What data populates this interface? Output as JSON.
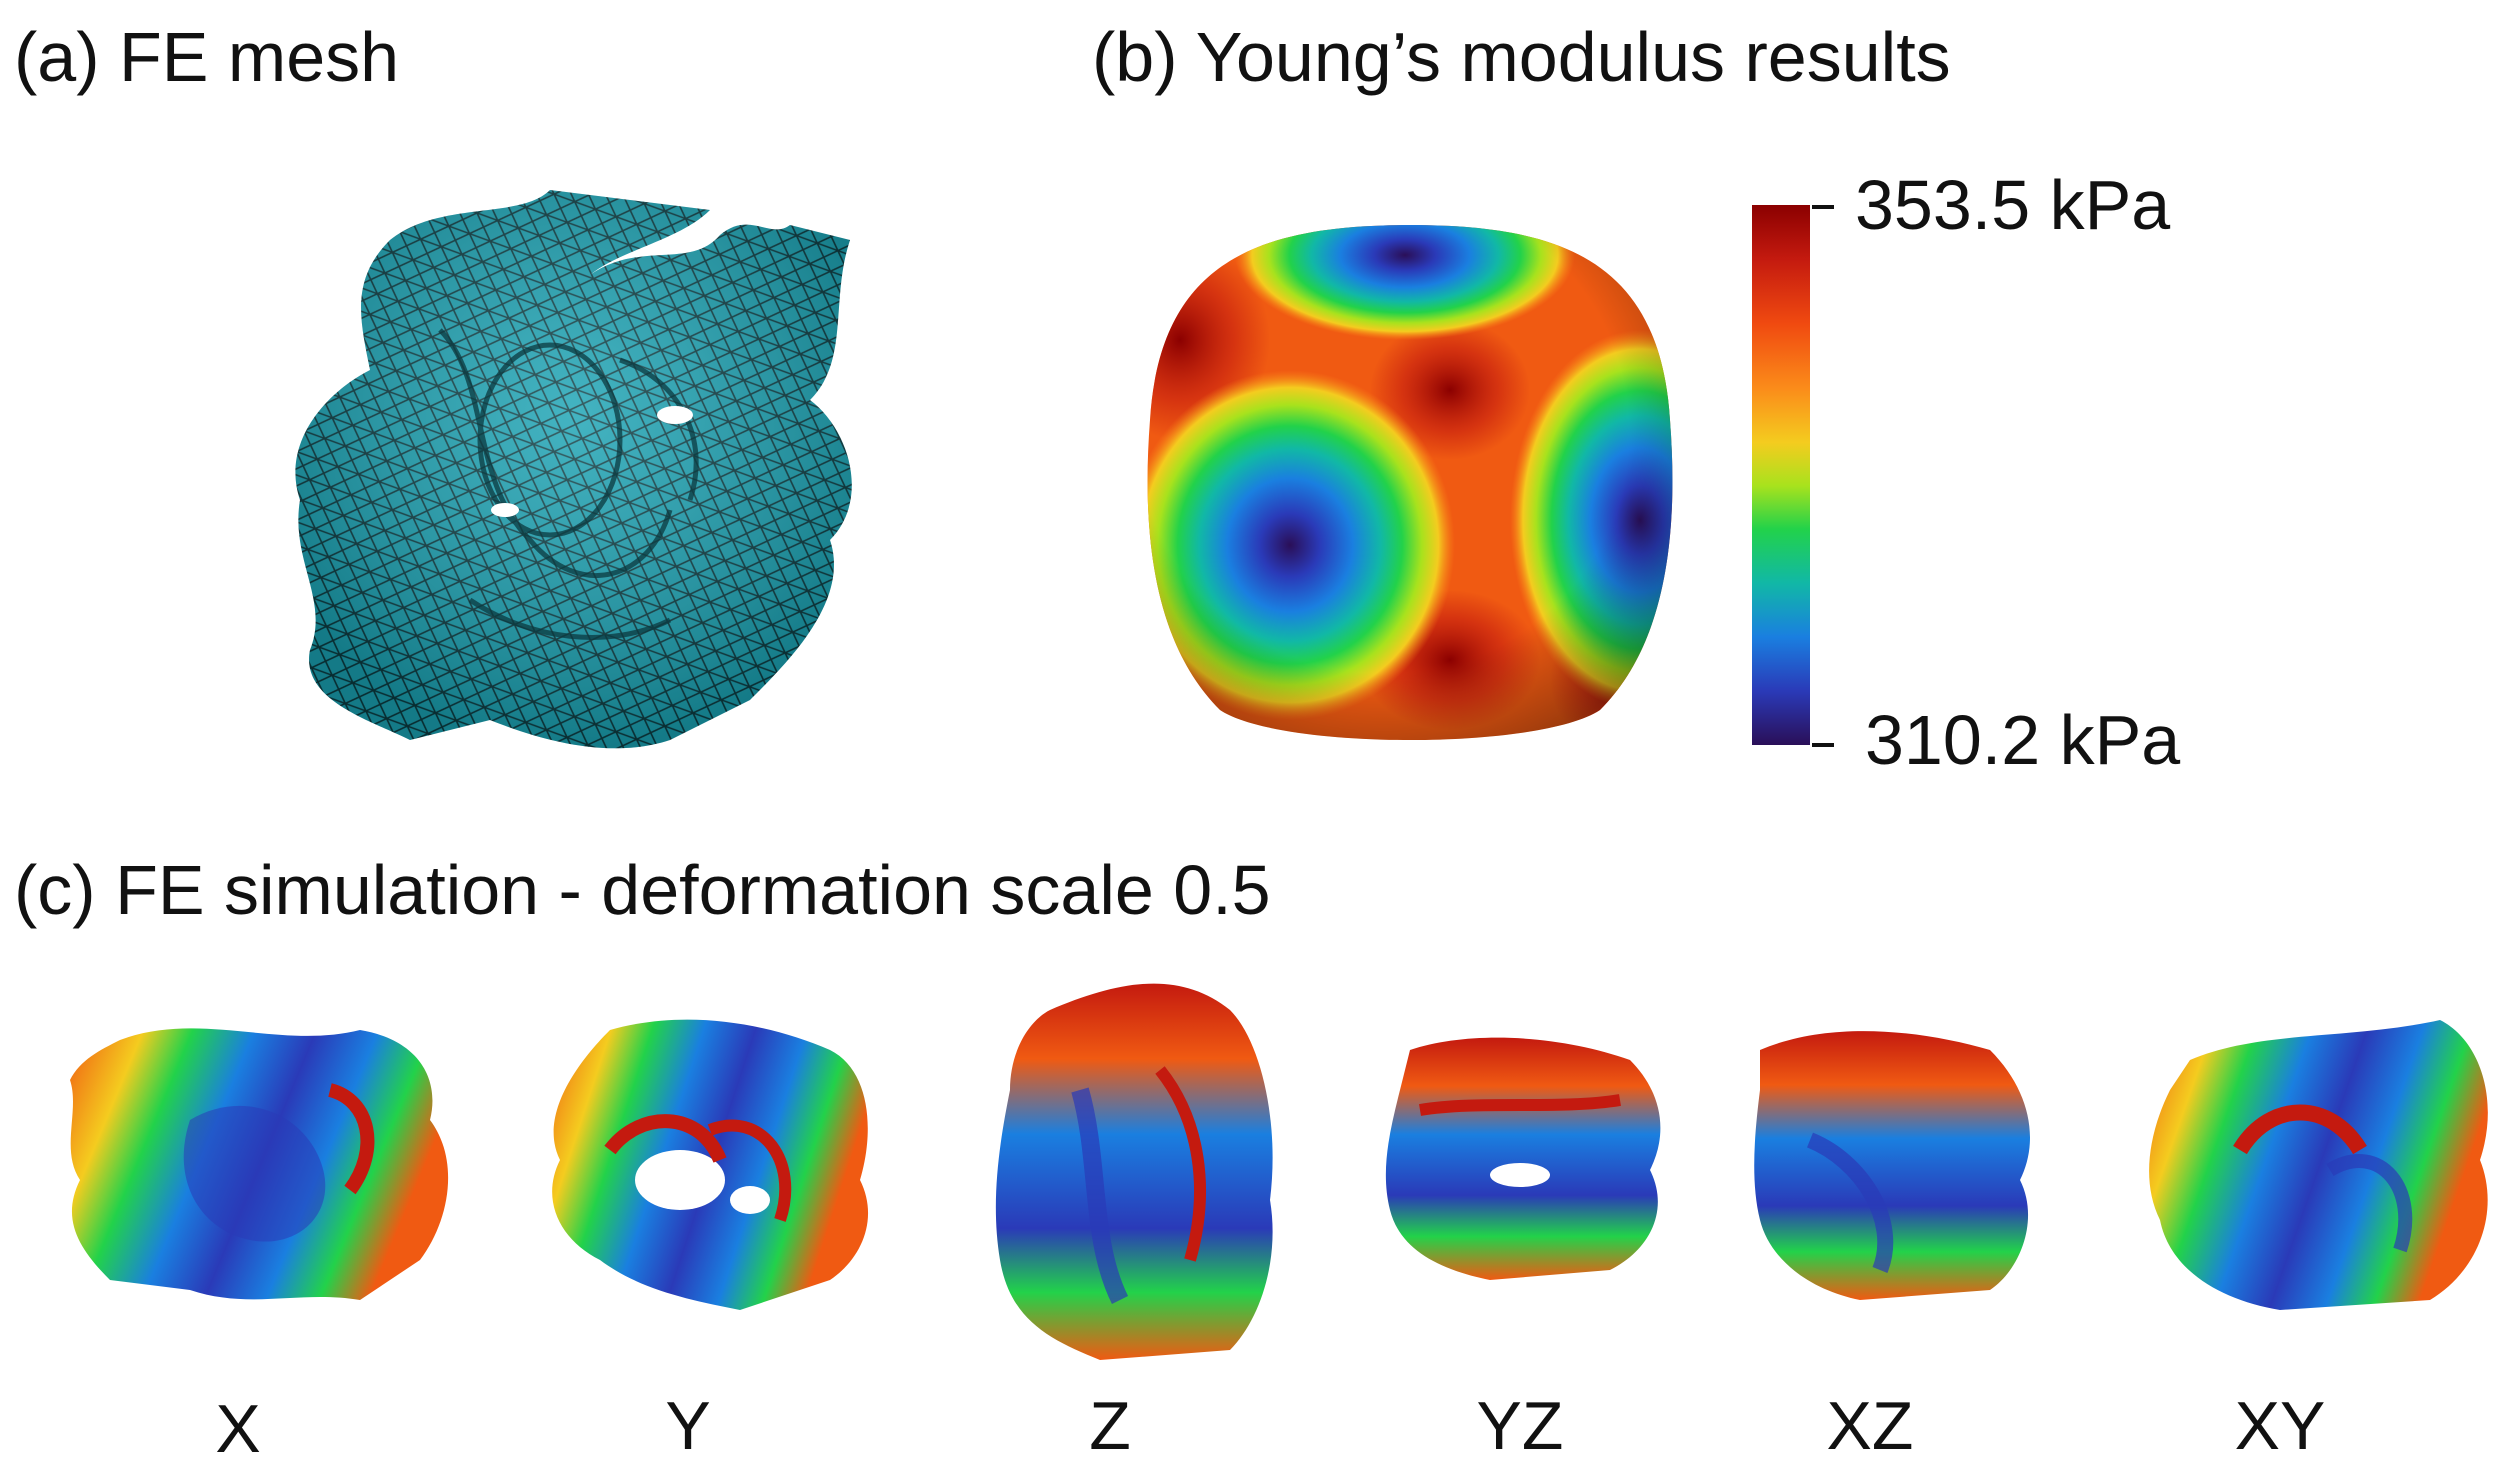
{
  "panels": {
    "a": {
      "title": "(a) FE mesh"
    },
    "b": {
      "title": "(b) Young’s modulus results"
    },
    "c": {
      "title": "(c) FE simulation - deformation scale 0.5"
    }
  },
  "colorbar": {
    "max_label": "353.5 kPa",
    "min_label": "310.2 kPa",
    "max_value": 353.5,
    "min_value": 310.2,
    "unit": "kPa"
  },
  "simulations": {
    "labels": [
      "X",
      "Y",
      "Z",
      "YZ",
      "XZ",
      "XY"
    ]
  },
  "colors": {
    "mesh": "#1aa3b4",
    "mesh_lines": "#0b3a40",
    "high": "#c41a0f",
    "mid": "#22d24a",
    "low": "#2a0f58"
  }
}
